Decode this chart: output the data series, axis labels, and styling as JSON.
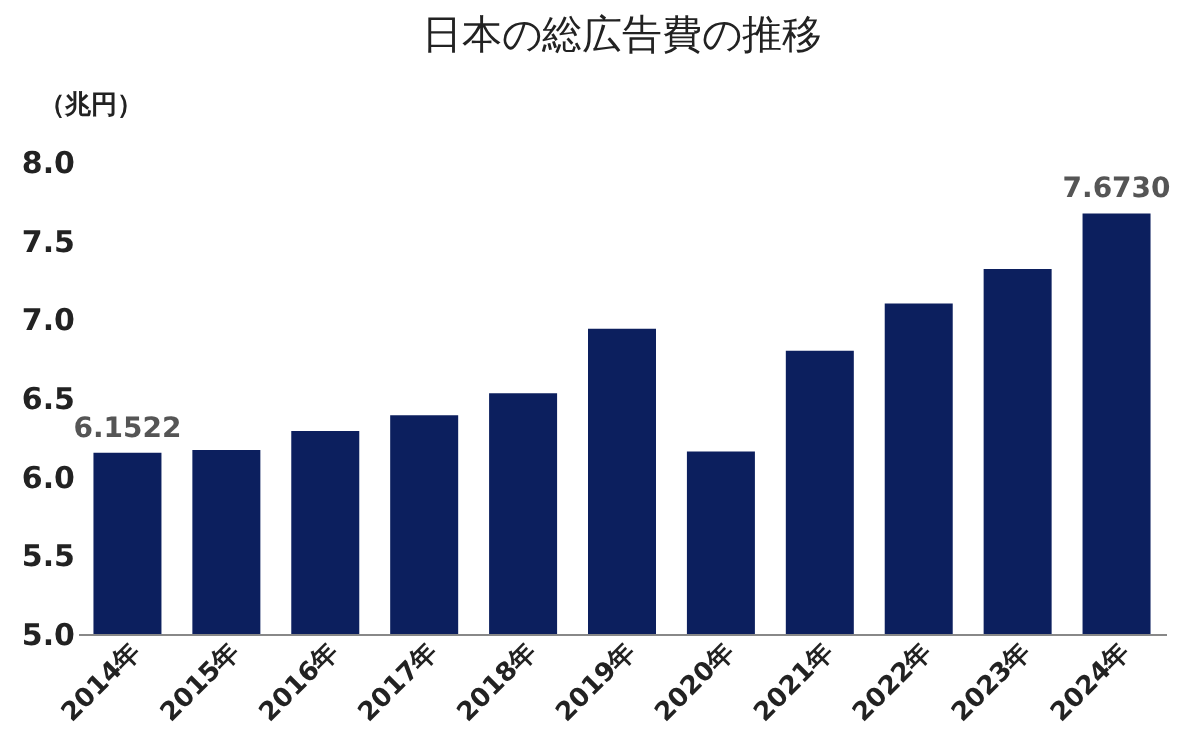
{
  "chart_data": {
    "type": "bar",
    "title": "日本の総広告費の推移",
    "ylabel": "（兆円）",
    "categories": [
      "2014年",
      "2015年",
      "2016年",
      "2017年",
      "2018年",
      "2019年",
      "2020年",
      "2021年",
      "2022年",
      "2023年",
      "2024年"
    ],
    "values": [
      6.1522,
      6.17,
      6.29,
      6.39,
      6.53,
      6.94,
      6.16,
      6.8,
      7.1,
      7.32,
      7.673
    ],
    "value_labels": [
      "6.1522",
      null,
      null,
      null,
      null,
      null,
      null,
      null,
      null,
      null,
      "7.6730"
    ],
    "color": "#0c1f5e",
    "ylim": [
      5.0,
      8.0
    ],
    "yticks": [
      {
        "value": 5.0,
        "label": "5.0"
      },
      {
        "value": 5.5,
        "label": "5.5"
      },
      {
        "value": 6.0,
        "label": "6.0"
      },
      {
        "value": 6.5,
        "label": "6.5"
      },
      {
        "value": 7.0,
        "label": "7.0"
      },
      {
        "value": 7.5,
        "label": "7.5"
      },
      {
        "value": 8.0,
        "label": "8.0"
      }
    ],
    "grid": false
  }
}
